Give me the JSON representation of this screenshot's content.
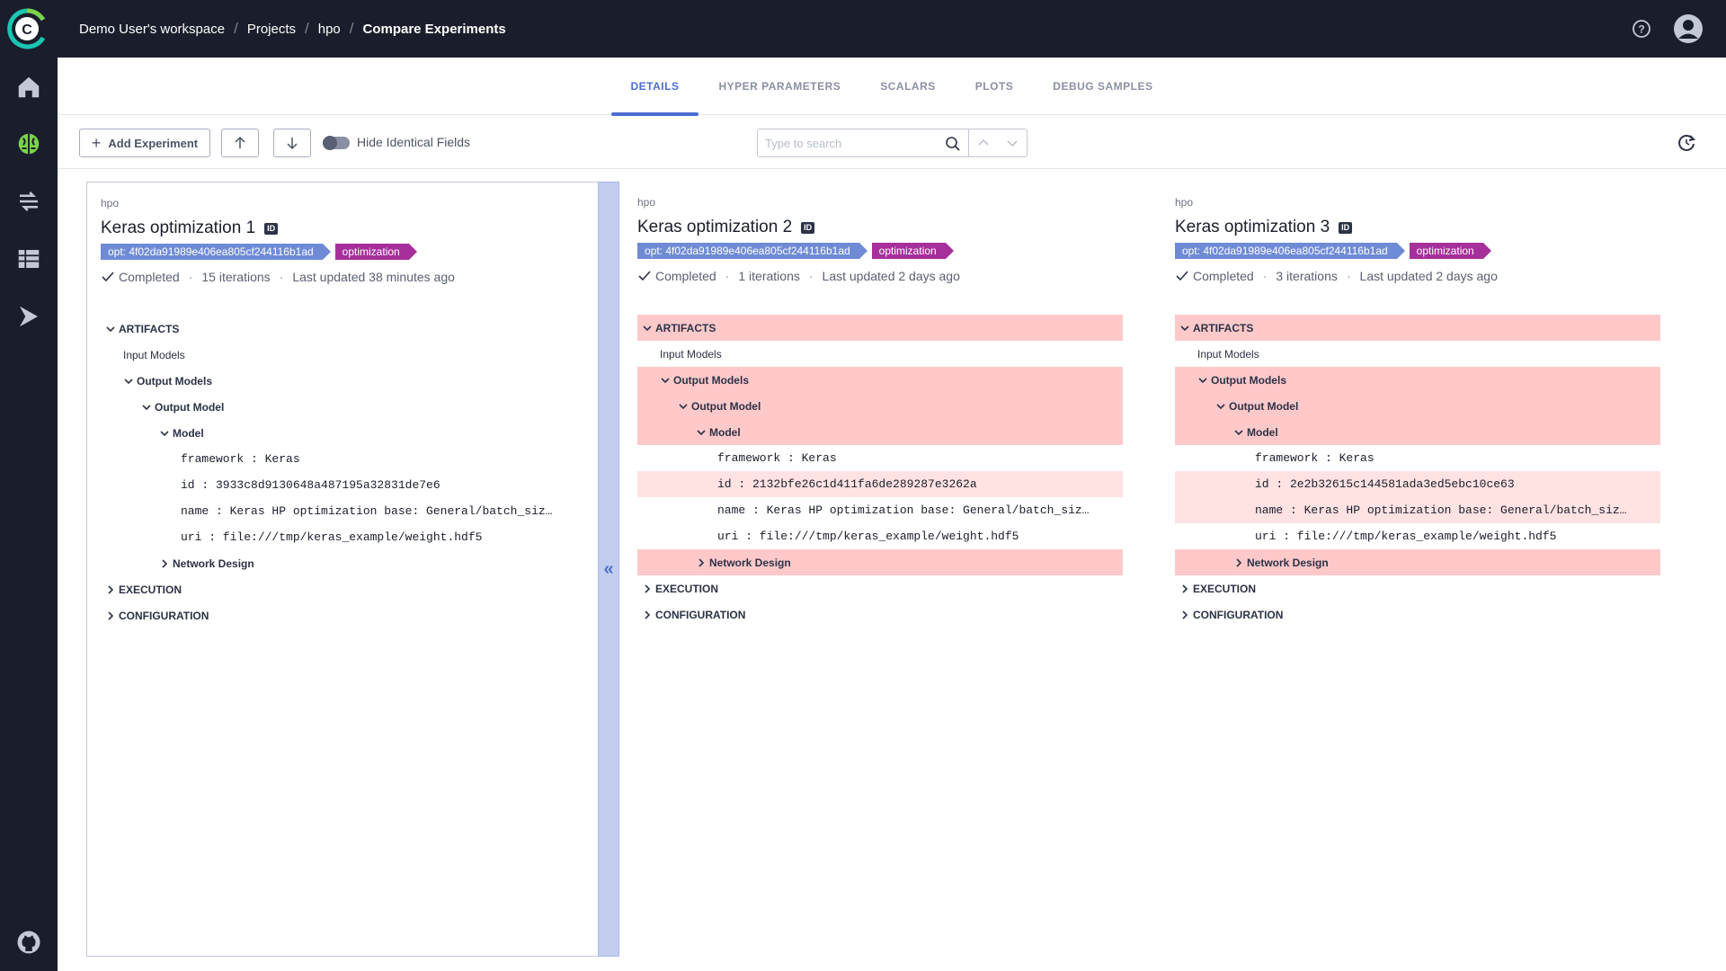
{
  "header": {
    "breadcrumb": [
      "Demo User's workspace",
      "Projects",
      "hpo",
      "Compare Experiments"
    ]
  },
  "tabs": [
    "DETAILS",
    "HYPER PARAMETERS",
    "SCALARS",
    "PLOTS",
    "DEBUG SAMPLES"
  ],
  "active_tab": "DETAILS",
  "toolbar": {
    "add_label": "Add Experiment",
    "hide_identical_label": "Hide Identical Fields",
    "search_placeholder": "Type to search"
  },
  "colors": {
    "accent": "#4c6ed1",
    "sidebar": "#1a1e2c",
    "tag_blue": "#6f8bd6",
    "tag_purple": "#a72f9b",
    "diff_strong": "#ffc9ca",
    "diff_light": "#ffe2e2"
  },
  "tree_labels": {
    "artifacts": "ARTIFACTS",
    "input_models": "Input Models",
    "output_models": "Output Models",
    "output_model": "Output Model",
    "model": "Model",
    "network_design": "Network Design",
    "execution": "EXECUTION",
    "configuration": "CONFIGURATION"
  },
  "experiments": [
    {
      "project": "hpo",
      "title": "Keras optimization 1",
      "id_badge": "ID",
      "tag_opt": "opt: 4f02da91989e406ea805cf244116b1ad",
      "tag_name": "optimization",
      "status": "Completed",
      "iterations": "15 iterations",
      "updated": "Last updated 38 minutes ago",
      "framework": "framework : Keras",
      "id": "id : 3933c8d9130648a487195a32831de7e6",
      "name": "name : Keras HP optimization base: General/batch_size=…",
      "uri": "uri : file:///tmp/keras_example/weight.hdf5"
    },
    {
      "project": "hpo",
      "title": "Keras optimization 2",
      "id_badge": "ID",
      "tag_opt": "opt: 4f02da91989e406ea805cf244116b1ad",
      "tag_name": "optimization",
      "status": "Completed",
      "iterations": "1 iterations",
      "updated": "Last updated 2 days ago",
      "framework": "framework : Keras",
      "id": "id : 2132bfe26c1d411fa6de289287e3262a",
      "name": "name : Keras HP optimization base: General/batch_size=…",
      "uri": "uri : file:///tmp/keras_example/weight.hdf5"
    },
    {
      "project": "hpo",
      "title": "Keras optimization 3",
      "id_badge": "ID",
      "tag_opt": "opt: 4f02da91989e406ea805cf244116b1ad",
      "tag_name": "optimization",
      "status": "Completed",
      "iterations": "3 iterations",
      "updated": "Last updated 2 days ago",
      "framework": "framework : Keras",
      "id": "id : 2e2b32615c144581ada3ed5ebc10ce63",
      "name": "name : Keras HP optimization base: General/batch_size=…",
      "uri": "uri : file:///tmp/keras_example/weight.hdf5"
    }
  ]
}
